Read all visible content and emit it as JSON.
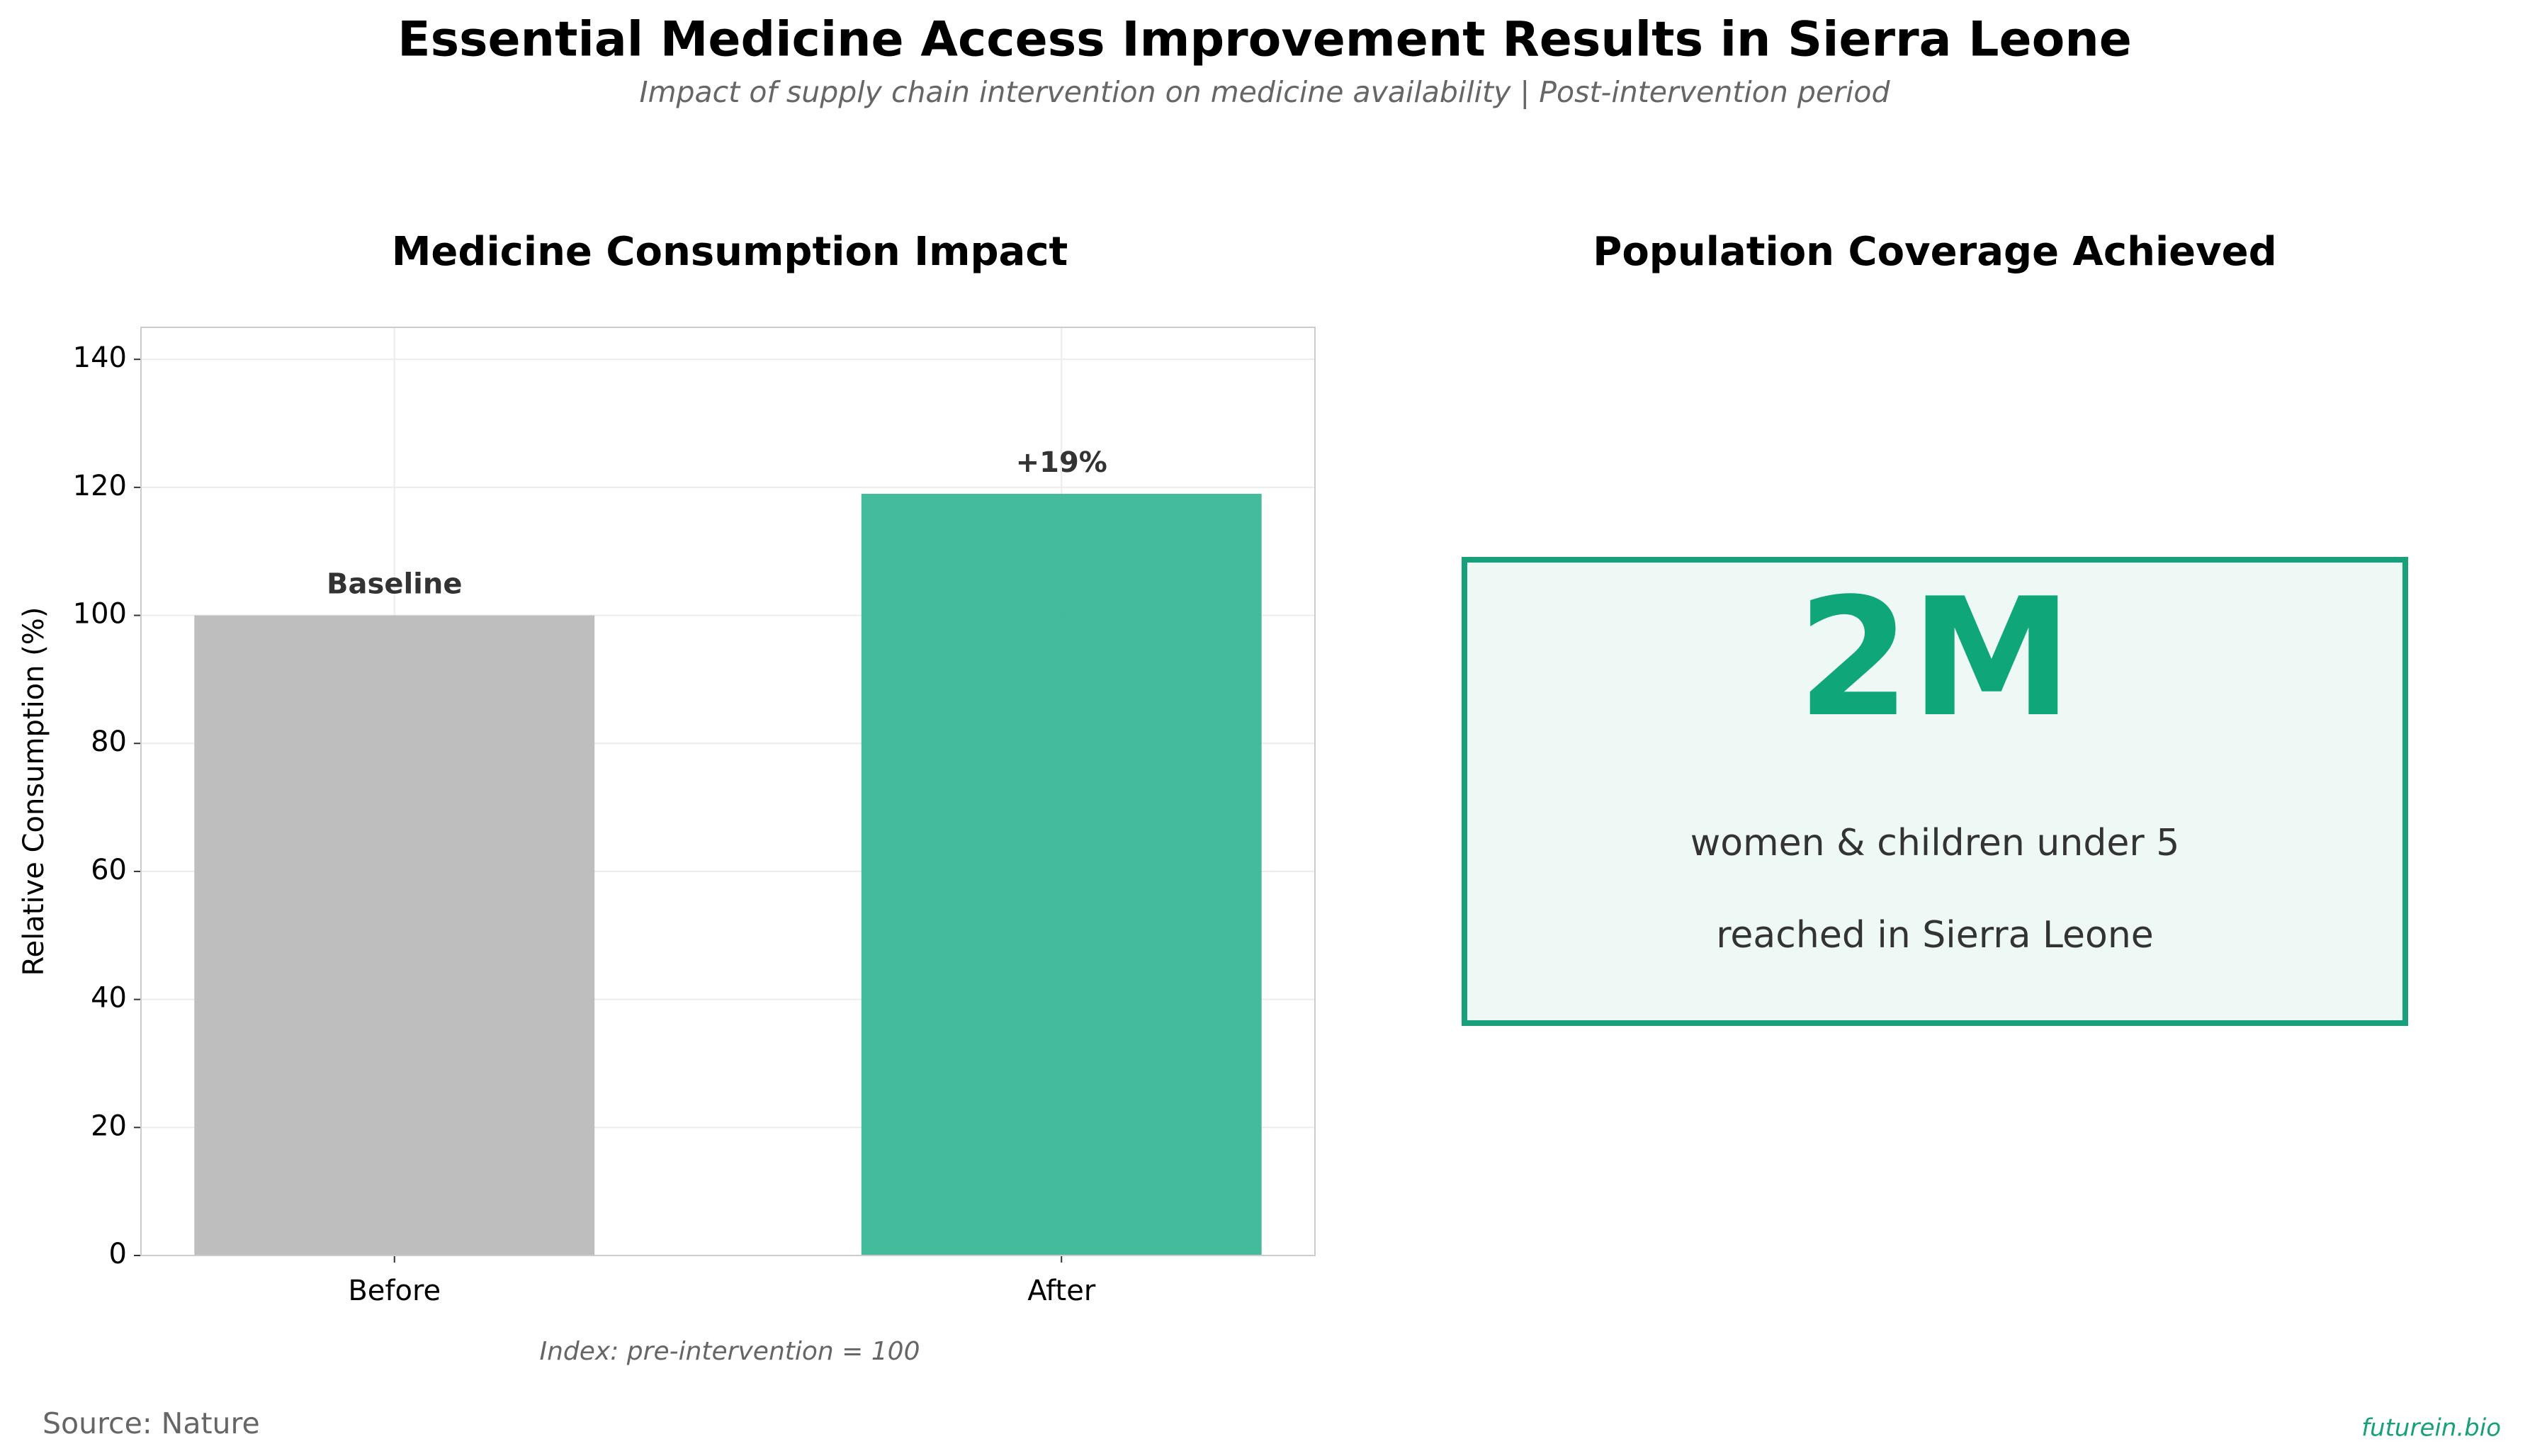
{
  "header": {
    "title": "Essential Medicine Access Improvement Results in Sierra Leone",
    "subtitle": "Impact of supply chain intervention on medicine availability | Post-intervention period"
  },
  "chart_data": {
    "type": "bar",
    "title": "Medicine Consumption Impact",
    "categories": [
      "Before",
      "After"
    ],
    "values": [
      100,
      119
    ],
    "bar_labels": [
      "Baseline",
      "+19%"
    ],
    "colors": [
      "#bbbbbb",
      "#3ab795"
    ],
    "ylabel": "Relative Consumption (%)",
    "ylim": [
      0,
      145
    ],
    "yticks": [
      0,
      20,
      40,
      60,
      80,
      100,
      120,
      140
    ],
    "grid": true,
    "note": "Index: pre-intervention = 100"
  },
  "kpi": {
    "title": "Population Coverage Achieved",
    "value": "2M",
    "lines": [
      "women & children under 5",
      "reached in Sierra Leone"
    ]
  },
  "footer": {
    "source": "Source: Nature",
    "credit": "futurein.bio"
  }
}
